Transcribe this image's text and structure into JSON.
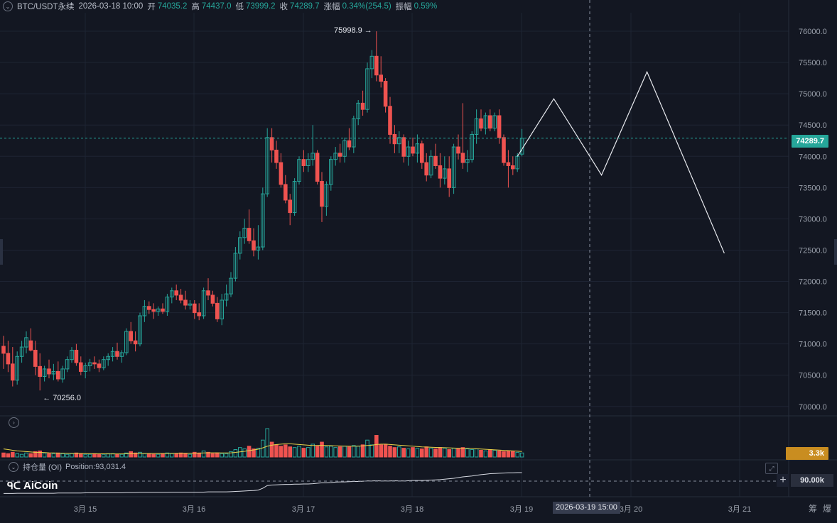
{
  "header": {
    "symbol": "BTC/USDT永续",
    "datetime": "2026-03-18 10:00",
    "open_label": "开",
    "open_value": "74035.2",
    "high_label": "高",
    "high_value": "74437.0",
    "low_label": "低",
    "low_value": "73999.2",
    "close_label": "收",
    "close_value": "74289.7",
    "change_label": "涨幅",
    "change_value": "0.34%(254.5)",
    "amplitude_label": "振幅",
    "amplitude_value": "0.59%"
  },
  "price_axis": {
    "ticks": [
      "76000.0",
      "75500.0",
      "75000.0",
      "74500.0",
      "74000.0",
      "73500.0",
      "73000.0",
      "72500.0",
      "72000.0",
      "71500.0",
      "71000.0",
      "70500.0",
      "70000.0"
    ],
    "current_price": "74289.7"
  },
  "annotations": {
    "high_marker": "75998.9",
    "low_marker": "70256.0"
  },
  "volume": {
    "last_value": "3.3k"
  },
  "open_interest": {
    "title": "持仓量 (OI)",
    "position_text": "Position:93,031.4",
    "axis_value": "90.00k"
  },
  "time_axis": {
    "labels": [
      "3月 15",
      "3月 16",
      "3月 17",
      "3月 18",
      "3月 19",
      "3月 20",
      "3月 21"
    ],
    "crosshair": "2026-03-19 15:00",
    "corner_labels": [
      "筹",
      "爆"
    ]
  },
  "logo": {
    "text": "AiCoin"
  },
  "colors": {
    "background": "#131722",
    "up": "#26a69a",
    "down": "#ef5350",
    "grid": "#1e2433",
    "ma_line": "#e8d34a",
    "drawing": "#e8eaef"
  },
  "chart_data": {
    "type": "candlestick",
    "interval_hours": 1,
    "y_range": [
      69850,
      76250
    ],
    "candles": [
      [
        70963,
        71130,
        70600,
        70850
      ],
      [
        70850,
        71050,
        70550,
        70680
      ],
      [
        70680,
        70950,
        70320,
        70420
      ],
      [
        70420,
        70880,
        70350,
        70800
      ],
      [
        70800,
        71050,
        70700,
        70950
      ],
      [
        70950,
        71200,
        70850,
        71100
      ],
      [
        71050,
        71250,
        70880,
        70900
      ],
      [
        70900,
        71050,
        70500,
        70640
      ],
      [
        70640,
        70850,
        70256,
        70480
      ],
      [
        70480,
        70650,
        70400,
        70600
      ],
      [
        70600,
        70750,
        70450,
        70520
      ],
      [
        70520,
        70680,
        70420,
        70560
      ],
      [
        70560,
        70720,
        70400,
        70440
      ],
      [
        70440,
        70650,
        70380,
        70600
      ],
      [
        70600,
        70800,
        70550,
        70750
      ],
      [
        70750,
        70950,
        70700,
        70900
      ],
      [
        70900,
        71000,
        70650,
        70700
      ],
      [
        70700,
        70800,
        70500,
        70560
      ],
      [
        70560,
        70700,
        70450,
        70650
      ],
      [
        70650,
        70760,
        70560,
        70700
      ],
      [
        70700,
        70800,
        70600,
        70680
      ],
      [
        70680,
        70750,
        70550,
        70620
      ],
      [
        70620,
        70800,
        70580,
        70750
      ],
      [
        70750,
        70850,
        70650,
        70800
      ],
      [
        70800,
        70950,
        70720,
        70880
      ],
      [
        70880,
        71020,
        70750,
        70800
      ],
      [
        70800,
        70900,
        70700,
        70860
      ],
      [
        70860,
        71250,
        70820,
        71200
      ],
      [
        71200,
        71350,
        71000,
        71050
      ],
      [
        71050,
        71200,
        70880,
        71000
      ],
      [
        71000,
        71500,
        70960,
        71450
      ],
      [
        71450,
        71700,
        71350,
        71600
      ],
      [
        71600,
        71680,
        71480,
        71550
      ],
      [
        71550,
        71650,
        71400,
        71520
      ],
      [
        71520,
        71600,
        71450,
        71560
      ],
      [
        71560,
        71650,
        71480,
        71520
      ],
      [
        71520,
        71800,
        71450,
        71750
      ],
      [
        71750,
        71900,
        71650,
        71850
      ],
      [
        71850,
        71950,
        71700,
        71780
      ],
      [
        71780,
        71880,
        71650,
        71700
      ],
      [
        71700,
        71850,
        71550,
        71620
      ],
      [
        71620,
        71700,
        71550,
        71640
      ],
      [
        71640,
        71700,
        71400,
        71500
      ],
      [
        71500,
        71650,
        71380,
        71450
      ],
      [
        71450,
        71900,
        71400,
        71850
      ],
      [
        71850,
        72050,
        71700,
        71780
      ],
      [
        71780,
        71850,
        71600,
        71650
      ],
      [
        71650,
        71750,
        71350,
        71400
      ],
      [
        71400,
        71800,
        71300,
        71700
      ],
      [
        71700,
        71950,
        71600,
        71800
      ],
      [
        71800,
        72150,
        71750,
        72050
      ],
      [
        72050,
        72550,
        72000,
        72450
      ],
      [
        72450,
        72800,
        72350,
        72700
      ],
      [
        72700,
        73000,
        72600,
        72850
      ],
      [
        72850,
        73150,
        72600,
        72650
      ],
      [
        72650,
        72850,
        72400,
        72500
      ],
      [
        72500,
        72900,
        72350,
        72550
      ],
      [
        72550,
        73500,
        72500,
        73400
      ],
      [
        73400,
        74450,
        73350,
        74300
      ],
      [
        74300,
        74450,
        73900,
        74100
      ],
      [
        74100,
        74250,
        73800,
        73900
      ],
      [
        73900,
        74050,
        73500,
        73550
      ],
      [
        73550,
        73700,
        73250,
        73300
      ],
      [
        73300,
        73400,
        72900,
        73100
      ],
      [
        73100,
        73650,
        73050,
        73600
      ],
      [
        73600,
        74000,
        73550,
        73950
      ],
      [
        73950,
        74100,
        73750,
        73850
      ],
      [
        73850,
        74050,
        73750,
        73950
      ],
      [
        73950,
        74500,
        73850,
        74050
      ],
      [
        74050,
        74100,
        73550,
        73600
      ],
      [
        73600,
        73750,
        72950,
        73200
      ],
      [
        73200,
        73600,
        73050,
        73550
      ],
      [
        73550,
        74000,
        73450,
        73950
      ],
      [
        73950,
        74150,
        73850,
        74050
      ],
      [
        74050,
        74200,
        73900,
        74000
      ],
      [
        74000,
        74300,
        73900,
        74250
      ],
      [
        74250,
        74450,
        74100,
        74150
      ],
      [
        74150,
        74650,
        74050,
        74600
      ],
      [
        74600,
        74900,
        74500,
        74850
      ],
      [
        74850,
        75050,
        74650,
        74750
      ],
      [
        74750,
        75500,
        74700,
        75400
      ],
      [
        75400,
        75700,
        75250,
        75600
      ],
      [
        75600,
        75999,
        75200,
        75300
      ],
      [
        75300,
        75600,
        75100,
        75200
      ],
      [
        75200,
        75250,
        74700,
        74800
      ],
      [
        74800,
        74950,
        74200,
        74350
      ],
      [
        74350,
        74500,
        74050,
        74200
      ],
      [
        74200,
        74400,
        74050,
        74300
      ],
      [
        74300,
        74350,
        73900,
        74000
      ],
      [
        74000,
        74250,
        73850,
        74150
      ],
      [
        74150,
        74300,
        74000,
        74050
      ],
      [
        74050,
        74350,
        73900,
        74200
      ],
      [
        74200,
        74250,
        73800,
        73900
      ],
      [
        73900,
        74050,
        73600,
        73700
      ],
      [
        73700,
        74100,
        73650,
        74000
      ],
      [
        74000,
        74200,
        73800,
        73850
      ],
      [
        73850,
        74050,
        73500,
        73650
      ],
      [
        73650,
        74000,
        73550,
        73800
      ],
      [
        73800,
        74000,
        73350,
        73500
      ],
      [
        73500,
        74200,
        73400,
        74150
      ],
      [
        74150,
        74350,
        73950,
        74050
      ],
      [
        74050,
        74850,
        73800,
        73900
      ],
      [
        73900,
        74100,
        73750,
        73950
      ],
      [
        73950,
        74400,
        73900,
        74350
      ],
      [
        74350,
        74750,
        74200,
        74600
      ],
      [
        74600,
        74750,
        74400,
        74450
      ],
      [
        74450,
        74700,
        74350,
        74650
      ],
      [
        74650,
        74750,
        74400,
        74450
      ],
      [
        74450,
        74700,
        74400,
        74650
      ],
      [
        74650,
        74750,
        74200,
        74300
      ],
      [
        74300,
        74350,
        73850,
        73900
      ],
      [
        73900,
        74100,
        73500,
        73850
      ],
      [
        73850,
        74000,
        73700,
        73800
      ],
      [
        73800,
        74050,
        73750,
        74000
      ],
      [
        74035,
        74437,
        73999,
        74289
      ]
    ],
    "volume": [
      0.6,
      0.5,
      0.7,
      0.5,
      0.4,
      0.6,
      0.5,
      0.8,
      0.9,
      0.6,
      0.5,
      0.5,
      0.6,
      0.5,
      0.4,
      0.5,
      0.6,
      0.5,
      0.4,
      0.4,
      0.5,
      0.4,
      0.4,
      0.5,
      0.5,
      0.4,
      0.4,
      0.6,
      0.8,
      0.6,
      0.7,
      0.5,
      0.5,
      0.4,
      0.4,
      0.5,
      0.6,
      0.5,
      0.5,
      0.6,
      0.5,
      0.4,
      0.7,
      0.6,
      0.9,
      0.7,
      0.5,
      0.6,
      0.5,
      0.5,
      0.8,
      1.1,
      1.4,
      1.2,
      1.6,
      1.2,
      1.3,
      2.5,
      4.2,
      2.2,
      1.8,
      1.6,
      1.8,
      1.5,
      1.4,
      1.6,
      1.3,
      1.4,
      1.9,
      1.6,
      2.2,
      1.5,
      1.6,
      1.4,
      1.5,
      1.6,
      1.5,
      1.7,
      1.6,
      1.8,
      2.5,
      1.8,
      3.2,
      1.8,
      1.9,
      1.6,
      1.4,
      1.5,
      1.3,
      1.2,
      1.4,
      1.3,
      1.2,
      1.5,
      1.3,
      1.2,
      1.4,
      1.3,
      1.1,
      1.3,
      1.2,
      1.4,
      1.2,
      1.1,
      1.2,
      1.0,
      0.9,
      1.1,
      1.0,
      0.9,
      0.8,
      0.9,
      0.8,
      0.7,
      0.6
    ],
    "volume_ma": [
      1.2,
      1.1,
      1.0,
      0.9,
      0.85,
      0.8,
      0.75,
      0.7,
      0.68,
      0.66,
      0.62,
      0.6,
      0.58,
      0.56,
      0.55,
      0.54,
      0.53,
      0.52,
      0.5,
      0.5,
      0.49,
      0.48,
      0.47,
      0.46,
      0.46,
      0.46,
      0.46,
      0.47,
      0.48,
      0.5,
      0.52,
      0.52,
      0.52,
      0.52,
      0.52,
      0.52,
      0.53,
      0.54,
      0.55,
      0.56,
      0.56,
      0.56,
      0.57,
      0.58,
      0.6,
      0.62,
      0.62,
      0.62,
      0.61,
      0.6,
      0.62,
      0.68,
      0.76,
      0.84,
      0.95,
      1.05,
      1.15,
      1.35,
      1.6,
      1.75,
      1.85,
      1.9,
      1.95,
      1.95,
      1.9,
      1.85,
      1.8,
      1.75,
      1.7,
      1.7,
      1.72,
      1.7,
      1.68,
      1.66,
      1.64,
      1.62,
      1.6,
      1.6,
      1.62,
      1.65,
      1.7,
      1.75,
      1.85,
      1.9,
      1.9,
      1.85,
      1.8,
      1.75,
      1.7,
      1.65,
      1.6,
      1.55,
      1.5,
      1.48,
      1.45,
      1.42,
      1.4,
      1.38,
      1.35,
      1.33,
      1.3,
      1.3,
      1.28,
      1.25,
      1.22,
      1.18,
      1.14,
      1.1,
      1.06,
      1.02,
      0.98,
      0.94,
      0.9,
      0.86,
      0.82
    ],
    "oi_series": [
      0.05,
      0.05,
      0.05,
      0.06,
      0.06,
      0.06,
      0.06,
      0.06,
      0.06,
      0.06,
      0.06,
      0.06,
      0.07,
      0.07,
      0.07,
      0.07,
      0.07,
      0.07,
      0.08,
      0.08,
      0.08,
      0.08,
      0.08,
      0.08,
      0.08,
      0.08,
      0.08,
      0.09,
      0.09,
      0.09,
      0.1,
      0.1,
      0.1,
      0.1,
      0.1,
      0.1,
      0.1,
      0.11,
      0.11,
      0.11,
      0.11,
      0.11,
      0.11,
      0.11,
      0.11,
      0.12,
      0.12,
      0.12,
      0.12,
      0.12,
      0.13,
      0.14,
      0.15,
      0.16,
      0.17,
      0.18,
      0.2,
      0.28,
      0.4,
      0.42,
      0.43,
      0.44,
      0.45,
      0.45,
      0.46,
      0.46,
      0.47,
      0.47,
      0.48,
      0.5,
      0.52,
      0.52,
      0.53,
      0.55,
      0.56,
      0.56,
      0.57,
      0.58,
      0.58,
      0.59,
      0.6,
      0.6,
      0.61,
      0.6,
      0.6,
      0.6,
      0.61,
      0.6,
      0.6,
      0.61,
      0.62,
      0.62,
      0.62,
      0.63,
      0.64,
      0.65,
      0.66,
      0.68,
      0.7,
      0.72,
      0.75,
      0.78,
      0.8,
      0.82,
      0.85,
      0.88,
      0.9,
      0.92,
      0.93,
      0.94,
      0.95,
      0.96,
      0.96,
      0.97,
      0.97
    ],
    "projection": [
      {
        "t": 113,
        "price": 74000
      },
      {
        "t": 121,
        "price": 74920
      },
      {
        "t": 131.5,
        "price": 73700
      },
      {
        "t": 141.5,
        "price": 75350
      },
      {
        "t": 158.5,
        "price": 72450
      }
    ],
    "grid": true
  }
}
